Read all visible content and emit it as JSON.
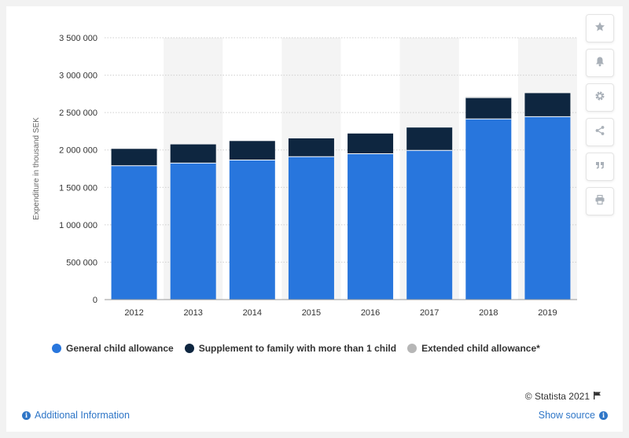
{
  "chart_data": {
    "type": "bar",
    "stacked": true,
    "categories": [
      "2012",
      "2013",
      "2014",
      "2015",
      "2016",
      "2017",
      "2018",
      "2019"
    ],
    "series": [
      {
        "name": "General child allowance",
        "color": "#2876dd",
        "values": [
          1790000,
          1825000,
          1865000,
          1910000,
          1950000,
          1995000,
          2415000,
          2445000
        ]
      },
      {
        "name": "Supplement to family with more than 1 child",
        "color": "#0e2640",
        "values": [
          225000,
          250000,
          255000,
          245000,
          270000,
          305000,
          285000,
          315000
        ]
      },
      {
        "name": "Extended child allowance*",
        "color": "#b6b6b6",
        "values": [
          0,
          0,
          0,
          0,
          0,
          0,
          10000,
          0
        ]
      }
    ],
    "ylabel": "Expenditure in thousand SEK",
    "ylim": [
      0,
      3500000
    ],
    "yticks": [
      0,
      500000,
      1000000,
      1500000,
      2000000,
      2500000,
      3000000,
      3500000
    ],
    "ytick_labels": [
      "0",
      "500 000",
      "1 000 000",
      "1 500 000",
      "2 000 000",
      "2 500 000",
      "3 000 000",
      "3 500 000"
    ],
    "grid": true,
    "legend_position": "bottom"
  },
  "legend": {
    "general": "General child allowance",
    "supplement": "Supplement to family with more than 1 child",
    "extended": "Extended child allowance*"
  },
  "sidebar": {
    "icons": [
      "star-icon",
      "bell-icon",
      "gear-icon",
      "share-icon",
      "quote-icon",
      "print-icon"
    ]
  },
  "footer": {
    "credit": "© Statista 2021",
    "additional_info": "Additional Information",
    "show_source": "Show source"
  },
  "colors": {
    "accent": "#2f76c7",
    "band": "#f4f4f4"
  }
}
